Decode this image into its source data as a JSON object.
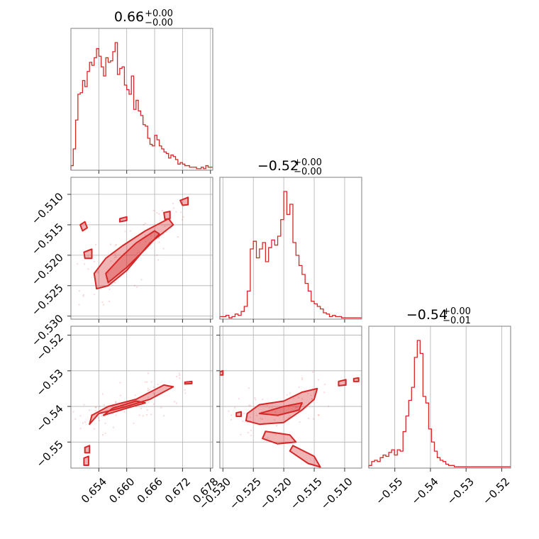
{
  "chart_data": {
    "type": "corner",
    "color": "#d62728",
    "parameters": [
      {
        "title_main": "0.66",
        "title_plus": "+0.00",
        "title_minus": "−0.00",
        "range": [
          0.648,
          0.6785
        ],
        "ticks": [
          0.654,
          0.66,
          0.666,
          0.672,
          0.678
        ],
        "tick_labels": [
          "0.654",
          "0.660",
          "0.666",
          "0.672",
          "0.678"
        ],
        "hist_step": 0.0005,
        "hist_values": [
          3,
          14,
          33,
          50,
          51,
          59,
          55,
          65,
          71,
          69,
          74,
          80,
          75,
          68,
          62,
          74,
          71,
          72,
          78,
          84,
          63,
          67,
          68,
          56,
          53,
          50,
          62,
          40,
          46,
          39,
          36,
          30,
          29,
          21,
          17,
          16,
          23,
          20,
          16,
          14,
          12,
          11,
          8,
          10,
          9,
          7,
          4,
          5,
          4,
          3,
          3,
          2,
          2,
          2,
          1,
          1,
          2,
          1,
          3,
          2,
          2
        ]
      },
      {
        "title_main": "−0.52",
        "title_plus": "+0.00",
        "title_minus": "−0.00",
        "range": [
          -0.5305,
          -0.5072
        ],
        "ticks": [
          -0.53,
          -0.525,
          -0.52,
          -0.515,
          -0.51
        ],
        "tick_labels": [
          "−0.530",
          "−0.525",
          "−0.520",
          "−0.515",
          "−0.510"
        ],
        "hist_step": 0.0005,
        "hist_values": [
          2,
          2,
          3,
          1,
          2,
          4,
          3,
          6,
          10,
          22,
          55,
          61,
          48,
          55,
          60,
          45,
          56,
          62,
          58,
          65,
          78,
          100,
          82,
          90,
          60,
          50,
          42,
          35,
          28,
          22,
          14,
          12,
          10,
          8,
          5,
          4,
          2,
          3,
          2,
          2,
          1,
          1,
          1,
          1,
          1,
          1,
          1
        ]
      },
      {
        "title_main": "−0.54",
        "title_plus": "+0.00",
        "title_minus": "−0.01",
        "range": [
          -0.5573,
          -0.5175
        ],
        "ticks": [
          -0.55,
          -0.54,
          -0.53,
          -0.52
        ],
        "tick_labels": [
          "−0.55",
          "−0.54",
          "−0.53",
          "−0.52"
        ],
        "hist_step": 0.0008,
        "hist_values": [
          2,
          5,
          6,
          5,
          8,
          10,
          9,
          12,
          14,
          10,
          14,
          13,
          28,
          40,
          52,
          62,
          85,
          98,
          88,
          55,
          50,
          30,
          20,
          13,
          8,
          6,
          5,
          3,
          2,
          2,
          1,
          1,
          1,
          1,
          1,
          1,
          1,
          1,
          1,
          1,
          1,
          1,
          1,
          1,
          1,
          1,
          1,
          1,
          1,
          1,
          1
        ]
      }
    ],
    "pairs": [
      {
        "x_param": 0,
        "y_param": 1,
        "contours": [
          [
            [
              0.6535,
              -0.5255
            ],
            [
              0.656,
              -0.525
            ],
            [
              0.66,
              -0.5225
            ],
            [
              0.665,
              -0.518
            ],
            [
              0.67,
              -0.515
            ],
            [
              0.669,
              -0.514
            ],
            [
              0.664,
              -0.516
            ],
            [
              0.659,
              -0.5185
            ],
            [
              0.6555,
              -0.5205
            ],
            [
              0.653,
              -0.523
            ]
          ],
          [
            [
              0.656,
              -0.5245
            ],
            [
              0.66,
              -0.522
            ],
            [
              0.664,
              -0.519
            ],
            [
              0.667,
              -0.5165
            ],
            [
              0.666,
              -0.516
            ],
            [
              0.662,
              -0.518
            ],
            [
              0.6585,
              -0.5205
            ],
            [
              0.6555,
              -0.523
            ]
          ],
          [
            [
              0.65,
              -0.515
            ],
            [
              0.651,
              -0.5145
            ],
            [
              0.6515,
              -0.5155
            ],
            [
              0.6505,
              -0.516
            ]
          ],
          [
            [
              0.6508,
              -0.5195
            ],
            [
              0.6525,
              -0.519
            ],
            [
              0.6525,
              -0.5205
            ],
            [
              0.651,
              -0.5205
            ]
          ],
          [
            [
              0.6585,
              -0.514
            ],
            [
              0.66,
              -0.5137
            ],
            [
              0.66,
              -0.5143
            ],
            [
              0.6585,
              -0.5145
            ]
          ],
          [
            [
              0.6715,
              -0.511
            ],
            [
              0.6732,
              -0.5105
            ],
            [
              0.6732,
              -0.5117
            ],
            [
              0.672,
              -0.5118
            ]
          ],
          [
            [
              0.668,
              -0.513
            ],
            [
              0.6693,
              -0.5128
            ],
            [
              0.6693,
              -0.514
            ],
            [
              0.6682,
              -0.5141
            ]
          ]
        ]
      },
      {
        "x_param": 0,
        "y_param": 2,
        "contours": [
          [
            [
              0.652,
              -0.545
            ],
            [
              0.654,
              -0.542
            ],
            [
              0.66,
              -0.54
            ],
            [
              0.665,
              -0.538
            ],
            [
              0.67,
              -0.5345
            ],
            [
              0.668,
              -0.534
            ],
            [
              0.662,
              -0.538
            ],
            [
              0.656,
              -0.54
            ],
            [
              0.6525,
              -0.5425
            ]
          ],
          [
            [
              0.655,
              -0.5425
            ],
            [
              0.66,
              -0.5405
            ],
            [
              0.664,
              -0.539
            ],
            [
              0.662,
              -0.5385
            ],
            [
              0.657,
              -0.5405
            ]
          ],
          [
            [
              0.651,
              -0.5515
            ],
            [
              0.652,
              -0.551
            ],
            [
              0.652,
              -0.553
            ],
            [
              0.651,
              -0.553
            ]
          ],
          [
            [
              0.6508,
              -0.5545
            ],
            [
              0.6518,
              -0.554
            ],
            [
              0.6518,
              -0.5565
            ],
            [
              0.6508,
              -0.5565
            ]
          ],
          [
            [
              0.6725,
              -0.5332
            ],
            [
              0.674,
              -0.533
            ],
            [
              0.674,
              -0.5336
            ],
            [
              0.6725,
              -0.5337
            ]
          ]
        ]
      },
      {
        "x_param": 1,
        "y_param": 2,
        "contours": [
          [
            [
              -0.526,
              -0.542
            ],
            [
              -0.524,
              -0.5395
            ],
            [
              -0.52,
              -0.5385
            ],
            [
              -0.517,
              -0.536
            ],
            [
              -0.5145,
              -0.535
            ],
            [
              -0.515,
              -0.538
            ],
            [
              -0.517,
              -0.541
            ],
            [
              -0.52,
              -0.5445
            ],
            [
              -0.524,
              -0.545
            ],
            [
              -0.5262,
              -0.544
            ]
          ],
          [
            [
              -0.524,
              -0.542
            ],
            [
              -0.52,
              -0.54
            ],
            [
              -0.517,
              -0.539
            ],
            [
              -0.5175,
              -0.541
            ],
            [
              -0.521,
              -0.5425
            ]
          ],
          [
            [
              -0.523,
              -0.547
            ],
            [
              -0.519,
              -0.548
            ],
            [
              -0.518,
              -0.55
            ],
            [
              -0.521,
              -0.5505
            ],
            [
              -0.5235,
              -0.549
            ]
          ],
          [
            [
              -0.5185,
              -0.551
            ],
            [
              -0.515,
              -0.554
            ],
            [
              -0.514,
              -0.557
            ],
            [
              -0.516,
              -0.556
            ],
            [
              -0.519,
              -0.5525
            ]
          ],
          [
            [
              -0.511,
              -0.533
            ],
            [
              -0.5098,
              -0.5325
            ],
            [
              -0.5098,
              -0.534
            ],
            [
              -0.511,
              -0.5342
            ]
          ],
          [
            [
              -0.5085,
              -0.5322
            ],
            [
              -0.5077,
              -0.532
            ],
            [
              -0.5077,
              -0.533
            ],
            [
              -0.5085,
              -0.533
            ]
          ],
          [
            [
              -0.5305,
              -0.5303
            ],
            [
              -0.53,
              -0.53
            ],
            [
              -0.53,
              -0.5312
            ],
            [
              -0.5305,
              -0.5312
            ]
          ],
          [
            [
              -0.5278,
              -0.5418
            ],
            [
              -0.527,
              -0.5415
            ],
            [
              -0.527,
              -0.5428
            ],
            [
              -0.5278,
              -0.5428
            ]
          ]
        ]
      }
    ],
    "grid": true
  }
}
